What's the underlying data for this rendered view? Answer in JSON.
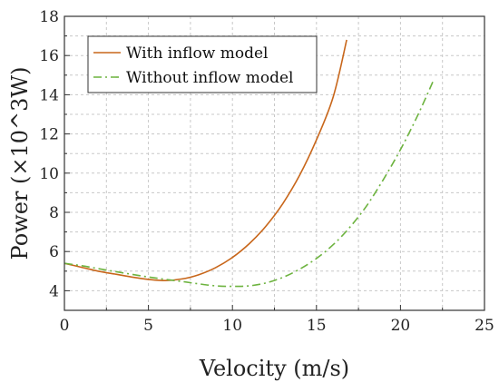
{
  "chart_data": {
    "type": "line",
    "xlabel": "Velocity (m/s)",
    "ylabel": "Power (×10^3W)",
    "xlim": [
      0,
      25
    ],
    "ylim": [
      3,
      18
    ],
    "x_ticks": [
      0,
      5,
      10,
      15,
      20,
      25
    ],
    "y_ticks": [
      4,
      6,
      8,
      10,
      12,
      14,
      16,
      18
    ],
    "grid": true,
    "legend_position": "top-left",
    "series": [
      {
        "name": "With inflow model",
        "color": "#c8661a",
        "line_style": "solid",
        "x": [
          0,
          1,
          2,
          3,
          4,
          5,
          6,
          7,
          8,
          9,
          10,
          11,
          12,
          13,
          14,
          15,
          16,
          16.8
        ],
        "y": [
          5.4,
          5.2,
          5.0,
          4.85,
          4.7,
          4.58,
          4.52,
          4.6,
          4.82,
          5.18,
          5.7,
          6.4,
          7.3,
          8.45,
          9.9,
          11.7,
          13.9,
          16.8
        ]
      },
      {
        "name": "Without inflow model",
        "color": "#6db33f",
        "line_style": "dash-dot",
        "x": [
          0,
          1,
          2,
          3,
          4,
          5,
          6,
          7,
          8,
          9,
          10,
          11,
          12,
          13,
          14,
          15,
          16,
          17,
          18,
          19,
          20,
          21,
          22
        ],
        "y": [
          5.4,
          5.28,
          5.13,
          4.98,
          4.84,
          4.7,
          4.58,
          4.47,
          4.35,
          4.25,
          4.22,
          4.25,
          4.4,
          4.68,
          5.1,
          5.65,
          6.35,
          7.25,
          8.35,
          9.7,
          11.2,
          12.9,
          14.8
        ]
      }
    ]
  }
}
